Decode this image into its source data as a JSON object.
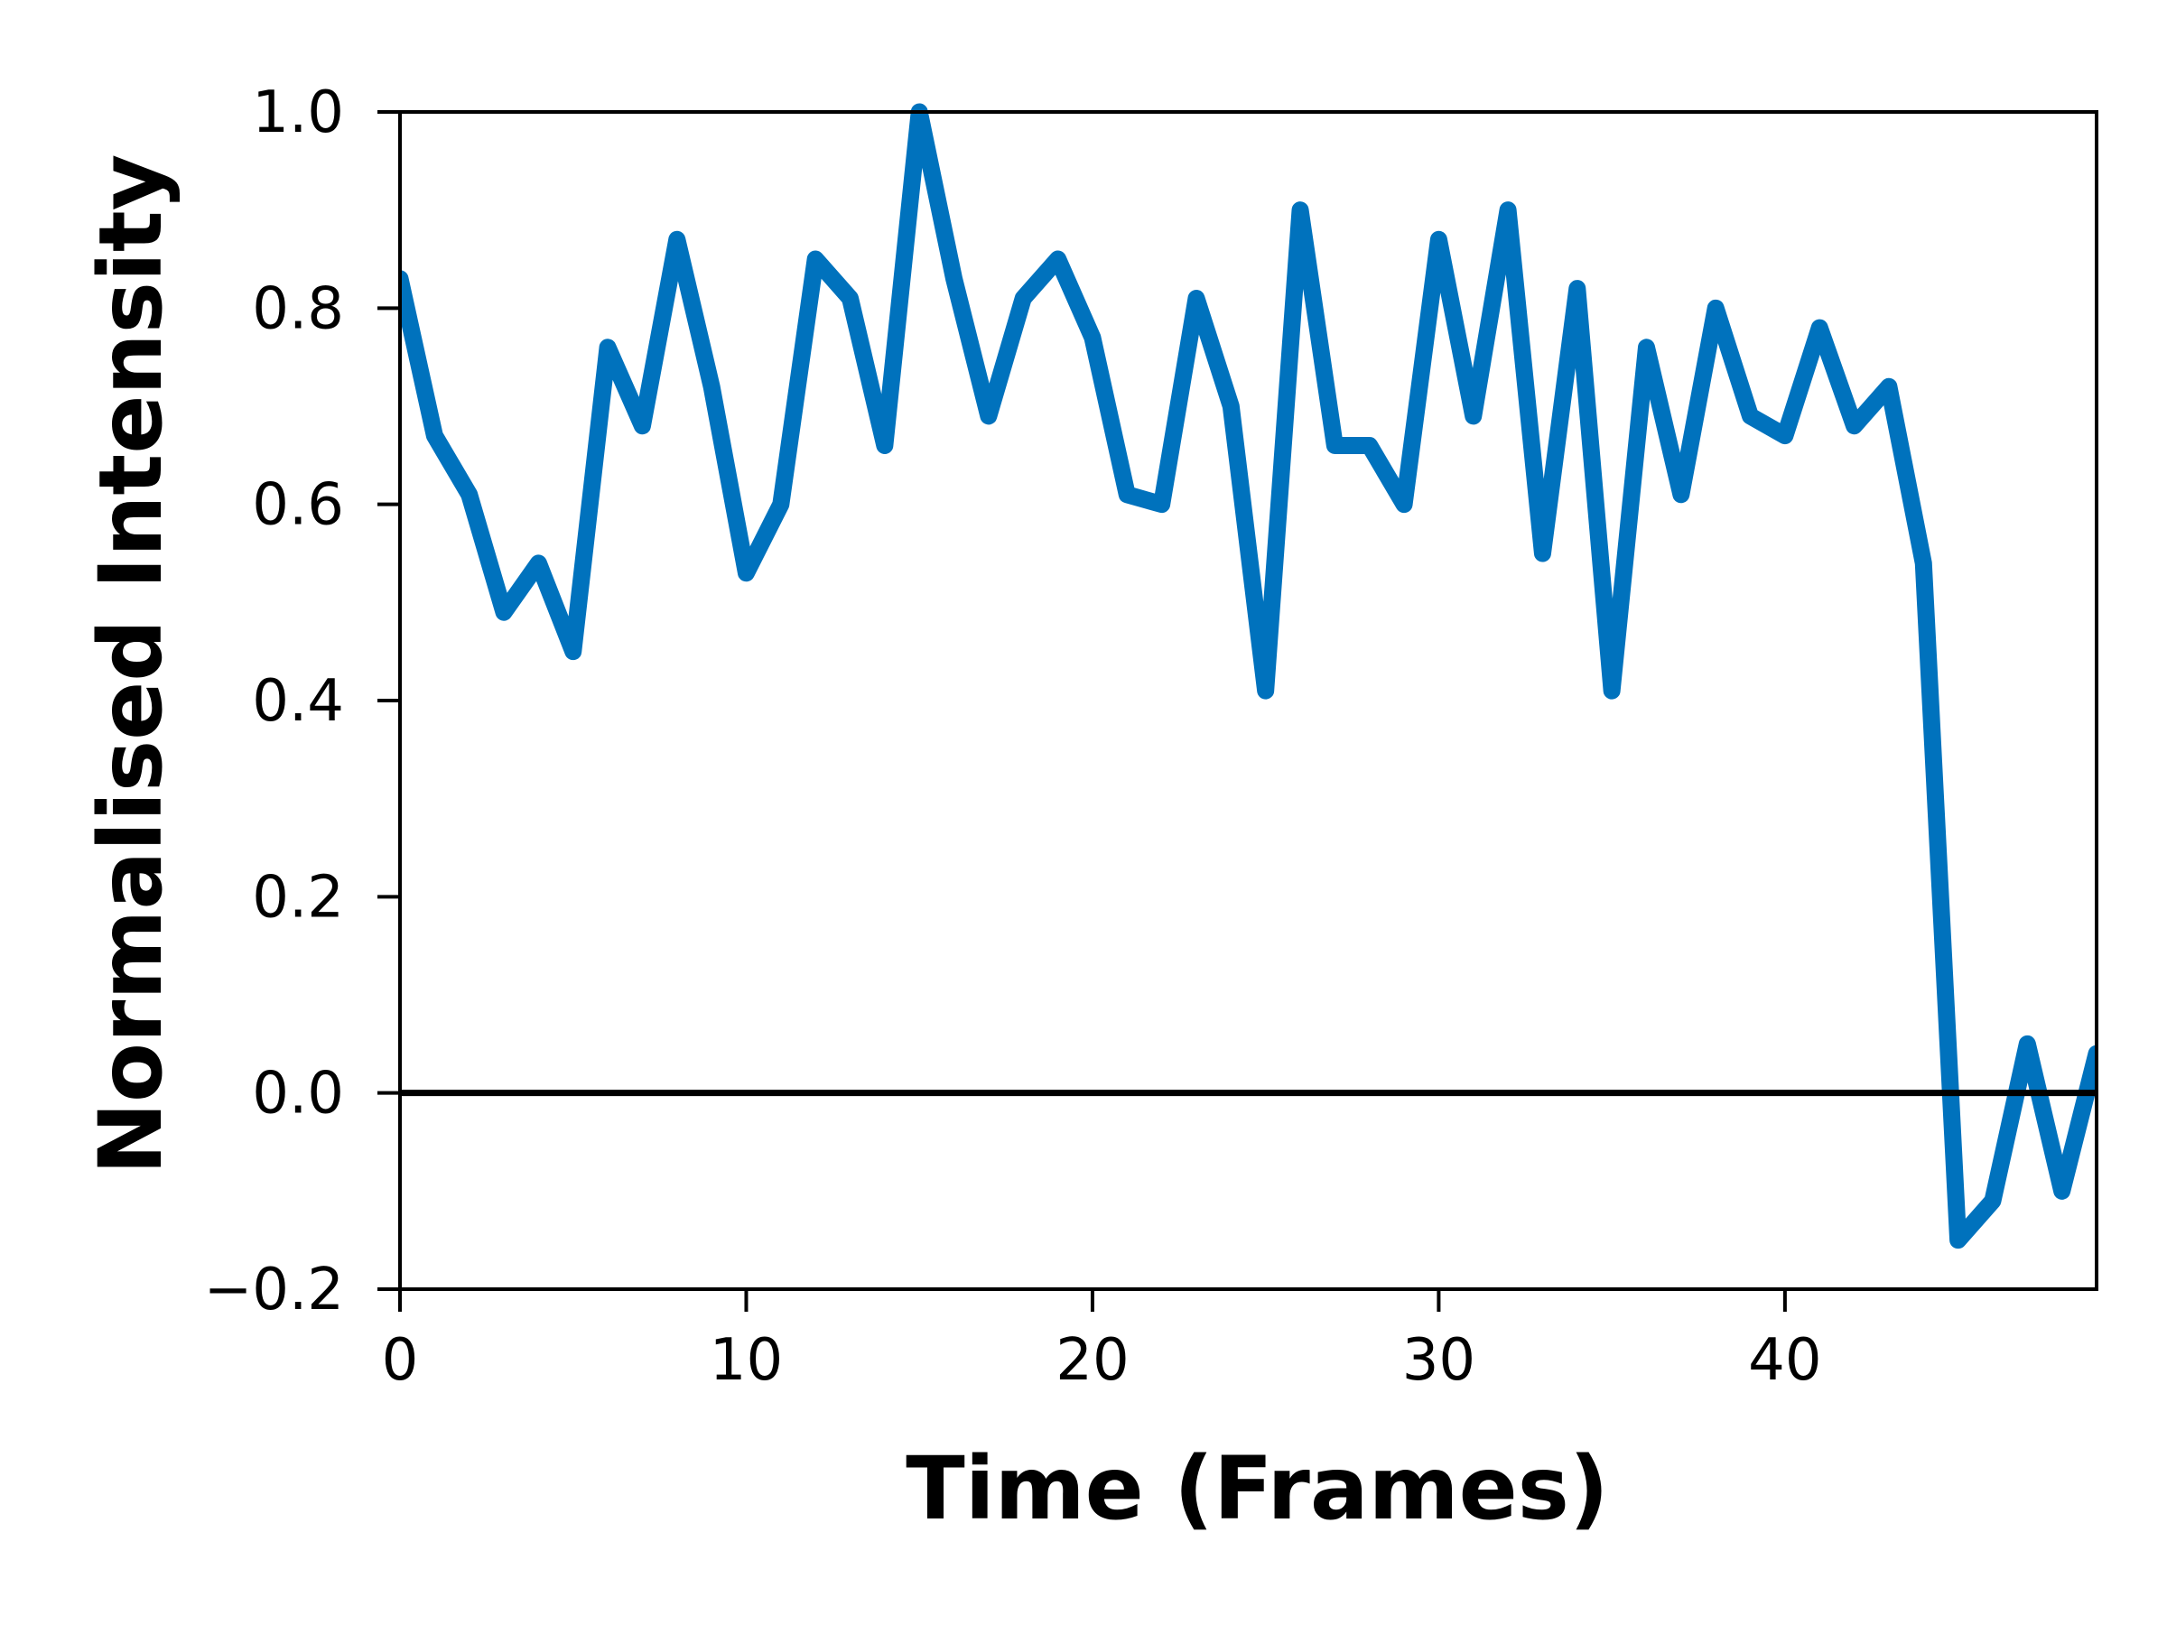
{
  "chart_data": {
    "type": "line",
    "xlabel": "Time (Frames)",
    "ylabel": "Normalised Intensity",
    "xlim": [
      0,
      49
    ],
    "ylim": [
      -0.2,
      1.0
    ],
    "x_ticks": [
      0,
      10,
      20,
      30,
      40
    ],
    "x_tick_labels": [
      "0",
      "10",
      "20",
      "30",
      "40"
    ],
    "y_ticks": [
      -0.2,
      0.0,
      0.2,
      0.4,
      0.6,
      0.8,
      1.0
    ],
    "y_tick_labels": [
      "−0.2",
      "0.0",
      "0.2",
      "0.4",
      "0.6",
      "0.8",
      "1.0"
    ],
    "grid": false,
    "reference_line": {
      "y": 0.0,
      "color": "#000000"
    },
    "series": [
      {
        "color": "#0072BD",
        "x": [
          0,
          1,
          2,
          3,
          4,
          5,
          6,
          7,
          8,
          9,
          10,
          11,
          12,
          13,
          14,
          15,
          16,
          17,
          18,
          19,
          20,
          21,
          22,
          23,
          24,
          25,
          26,
          27,
          28,
          29,
          30,
          31,
          32,
          33,
          34,
          35,
          36,
          37,
          38,
          39,
          40,
          41,
          42,
          43,
          44,
          45,
          46,
          47,
          48,
          49
        ],
        "y": [
          0.83,
          0.67,
          0.61,
          0.49,
          0.54,
          0.45,
          0.76,
          0.68,
          0.87,
          0.72,
          0.53,
          0.6,
          0.85,
          0.81,
          0.66,
          1.0,
          0.83,
          0.69,
          0.81,
          0.85,
          0.77,
          0.61,
          0.6,
          0.81,
          0.7,
          0.41,
          0.9,
          0.66,
          0.66,
          0.6,
          0.87,
          0.69,
          0.9,
          0.55,
          0.82,
          0.41,
          0.76,
          0.61,
          0.8,
          0.69,
          0.67,
          0.78,
          0.68,
          0.72,
          0.54,
          -0.15,
          -0.11,
          0.05,
          -0.1,
          0.04
        ]
      }
    ]
  }
}
